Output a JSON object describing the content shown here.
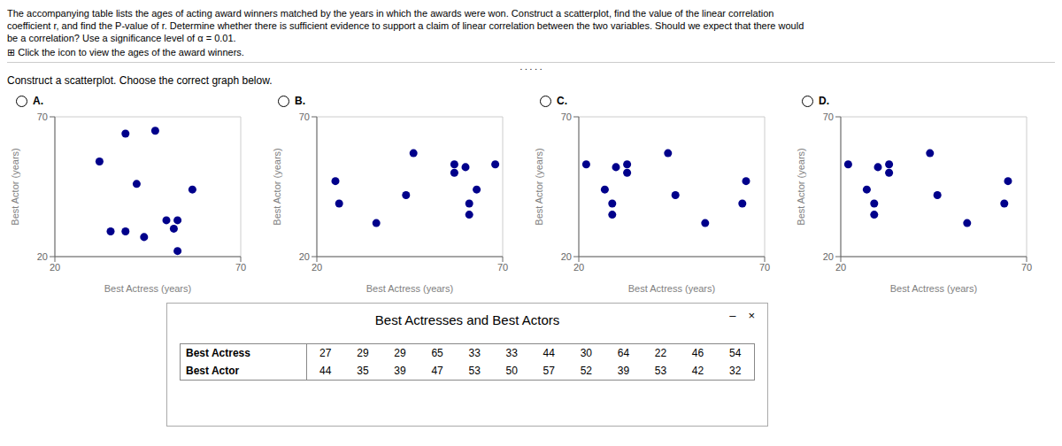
{
  "chart_data": [
    {
      "type": "scatter",
      "title": "A.",
      "x": [
        44,
        35,
        39,
        47,
        53,
        50,
        57,
        52,
        39,
        53,
        42,
        32
      ],
      "values": [
        27,
        29,
        29,
        65,
        33,
        33,
        44,
        30,
        64,
        22,
        46,
        54
      ],
      "xlabel": "Best Actress (years)",
      "ylabel": "Best Actor (years)",
      "xlim": [
        20,
        70
      ],
      "ylim": [
        20,
        70
      ],
      "xticks": [
        20,
        70
      ],
      "yticks": [
        20,
        70
      ],
      "grid": true,
      "color": "#00008B"
    },
    {
      "type": "scatter",
      "title": "B.",
      "x": [
        63,
        61,
        61,
        25,
        57,
        57,
        46,
        60,
        26,
        68,
        44,
        36
      ],
      "values": [
        44,
        35,
        39,
        47,
        53,
        50,
        57,
        52,
        39,
        53,
        42,
        32
      ],
      "xlabel": "Best Actress (years)",
      "ylabel": "Best Actor (years)",
      "xlim": [
        20,
        70
      ],
      "ylim": [
        20,
        70
      ],
      "xticks": [
        20,
        70
      ],
      "yticks": [
        20,
        70
      ],
      "grid": true,
      "color": "#00008B"
    },
    {
      "type": "scatter",
      "title": "C.",
      "x": [
        27,
        29,
        29,
        65,
        33,
        33,
        44,
        30,
        64,
        22,
        46,
        54
      ],
      "values": [
        44,
        35,
        39,
        47,
        53,
        50,
        57,
        52,
        39,
        53,
        42,
        32
      ],
      "xlabel": "Best Actress (years)",
      "ylabel": "Best Actor (years)",
      "xlim": [
        20,
        70
      ],
      "ylim": [
        20,
        70
      ],
      "xticks": [
        20,
        70
      ],
      "yticks": [
        20,
        70
      ],
      "grid": true,
      "color": "#00008B"
    },
    {
      "type": "scatter",
      "title": "D.",
      "x": [
        27,
        29,
        29,
        65,
        33,
        33,
        44,
        30,
        64,
        22,
        46,
        54
      ],
      "values": [
        44,
        35,
        39,
        47,
        53,
        50,
        57,
        52,
        39,
        53,
        42,
        32
      ],
      "xlabel": "Best Actress (years)",
      "ylabel": "Best Actor (years)",
      "xlim": [
        20,
        70
      ],
      "ylim": [
        20,
        70
      ],
      "xticks": [
        20,
        70
      ],
      "yticks": [
        20,
        70
      ],
      "grid": true,
      "color": "#00008B"
    }
  ],
  "annotations": [
    "The accompanying table lists the ages of acting award winners matched by the years in which the awards were won. Construct a scatterplot, find the value of the linear correlation",
    "coefficient r, and find the P-value of r. Determine whether there is sufficient evidence to support a claim of linear correlation between the two variables. Should we expect that there would",
    "be a correlation? Use a significance level of α = 0.01.",
    "⊞  Click the icon to view the ages of the award winners.",
    ". . . . .",
    "Construct a scatterplot. Choose the correct graph below.",
    "–",
    "×"
  ],
  "table": {
    "title": "Best Actresses and Best Actors",
    "rows": [
      {
        "label": "Best Actress",
        "values": [
          27,
          29,
          29,
          65,
          33,
          33,
          44,
          30,
          64,
          22,
          46,
          54
        ]
      },
      {
        "label": "Best Actor",
        "values": [
          44,
          35,
          39,
          47,
          53,
          50,
          57,
          52,
          39,
          53,
          42,
          32
        ]
      }
    ]
  }
}
